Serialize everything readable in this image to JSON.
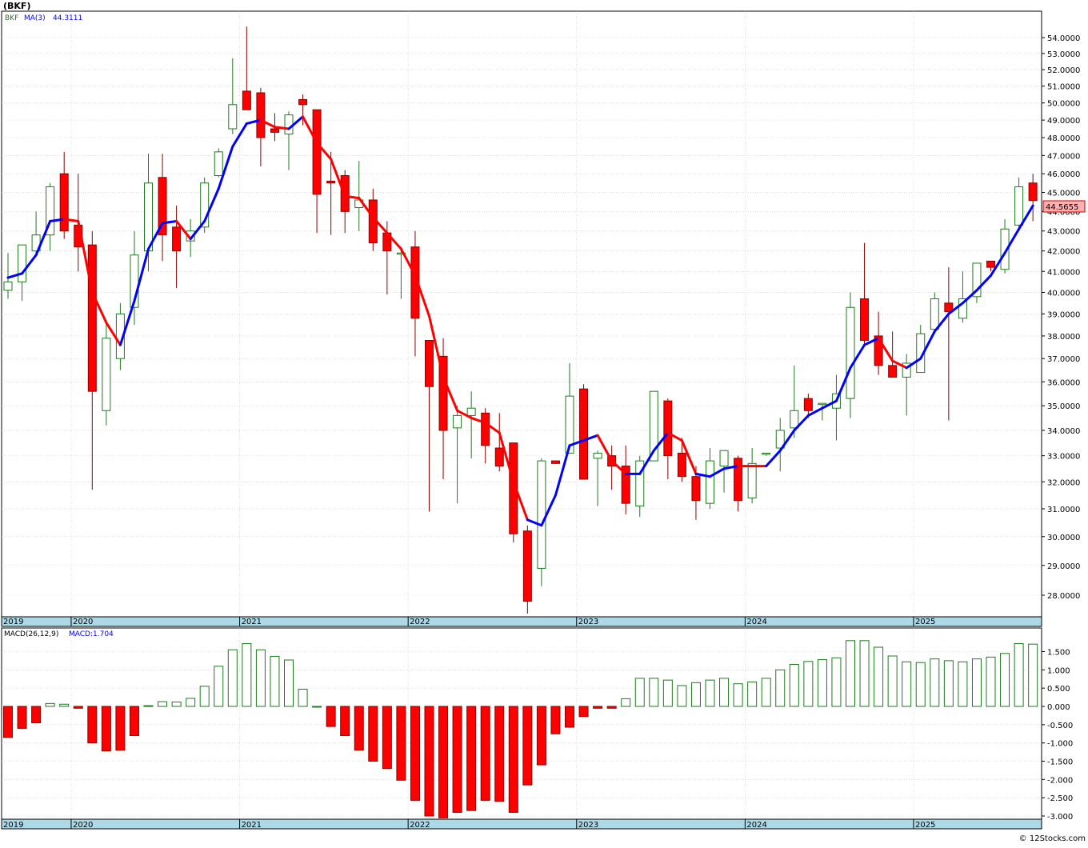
{
  "symbol_label": "(BKF)",
  "footer": "© 12Stocks.com",
  "colors": {
    "up": "#1f7a1f",
    "down": "#ff0000",
    "ma_up": "#0000ff",
    "ma_down": "#ff0000",
    "axis_band": "#add8e6",
    "grid": "#c8c8c8",
    "price_tag_bg": "#ffb0b0"
  },
  "price_panel": {
    "legend": [
      {
        "text": "BKF",
        "color": "#1f7a1f"
      },
      {
        "text": "MA(3)",
        "color": "#0000ff"
      },
      {
        "text": "44.3111",
        "color": "#0000ff"
      }
    ],
    "last_price_tag": "44.5655",
    "y_ticks": [
      "28.0000",
      "29.0000",
      "30.0000",
      "31.0000",
      "32.0000",
      "33.0000",
      "34.0000",
      "35.0000",
      "36.0000",
      "37.0000",
      "38.0000",
      "39.0000",
      "40.0000",
      "41.0000",
      "42.0000",
      "43.0000",
      "44.0000",
      "45.0000",
      "46.0000",
      "47.0000",
      "48.0000",
      "49.0000",
      "50.0000",
      "51.0000",
      "52.0000",
      "53.0000",
      "54.0000"
    ],
    "x_labels": [
      "2019",
      "2020",
      "2021",
      "2022",
      "2023",
      "2024",
      "2025"
    ]
  },
  "macd_panel": {
    "legend": [
      {
        "text": "MACD(26,12,9)",
        "color": "#000000"
      },
      {
        "text": "MACD:1.704",
        "color": "#0000ff"
      }
    ],
    "y_ticks": [
      "-3.000",
      "-2.500",
      "-2.000",
      "-1.500",
      "-1.000",
      "-0.500",
      "0.000",
      "0.500",
      "1.000",
      "1.500"
    ],
    "x_labels": [
      "2019",
      "2020",
      "2021",
      "2022",
      "2023",
      "2024",
      "2025"
    ]
  },
  "chart_data": [
    {
      "type": "candlestick",
      "scale": "log",
      "title": "(BKF)",
      "interval": "monthly",
      "ylim": [
        27.3,
        55.0
      ],
      "year_starts": {
        "2020": 5,
        "2021": 17,
        "2022": 29,
        "2023": 41,
        "2024": 53,
        "2025": 65
      },
      "ohlc": [
        [
          40.1,
          41.9,
          39.7,
          40.5
        ],
        [
          40.5,
          42.3,
          39.6,
          42.3
        ],
        [
          42.0,
          44.0,
          41.7,
          42.8
        ],
        [
          42.8,
          45.5,
          42.0,
          45.3
        ],
        [
          46.0,
          47.2,
          42.6,
          43.0
        ],
        [
          43.3,
          46.0,
          41.0,
          42.2
        ],
        [
          42.3,
          43.0,
          31.7,
          35.6
        ],
        [
          34.8,
          38.7,
          34.2,
          37.9
        ],
        [
          37.0,
          39.5,
          36.5,
          39.0
        ],
        [
          39.3,
          43.0,
          38.5,
          41.8
        ],
        [
          42.0,
          47.1,
          41.0,
          45.5
        ],
        [
          45.8,
          47.1,
          41.5,
          42.8
        ],
        [
          43.2,
          44.3,
          40.2,
          42.0
        ],
        [
          42.5,
          43.6,
          41.7,
          43.0
        ],
        [
          43.2,
          45.8,
          42.9,
          45.5
        ],
        [
          45.9,
          47.4,
          45.8,
          47.2
        ],
        [
          48.5,
          52.7,
          48.2,
          49.9
        ],
        [
          50.7,
          54.7,
          49.7,
          49.6
        ],
        [
          50.6,
          50.9,
          46.4,
          48.0
        ],
        [
          48.5,
          49.4,
          47.8,
          48.3
        ],
        [
          48.2,
          49.5,
          46.2,
          49.3
        ],
        [
          50.2,
          50.5,
          48.7,
          49.9
        ],
        [
          49.6,
          49.6,
          42.9,
          44.9
        ],
        [
          45.6,
          47.2,
          42.8,
          45.5
        ],
        [
          45.9,
          46.2,
          42.9,
          44.0
        ],
        [
          44.2,
          46.7,
          43.0,
          44.6
        ],
        [
          44.6,
          45.2,
          42.0,
          42.4
        ],
        [
          42.9,
          43.5,
          39.9,
          42.0
        ],
        [
          41.9,
          42.2,
          39.7,
          41.9
        ],
        [
          42.2,
          43.0,
          37.1,
          38.8
        ],
        [
          37.8,
          37.8,
          30.9,
          35.8
        ],
        [
          37.1,
          37.9,
          32.1,
          34.0
        ],
        [
          34.1,
          35.0,
          31.2,
          34.6
        ],
        [
          34.6,
          35.6,
          32.9,
          34.9
        ],
        [
          34.7,
          34.9,
          32.7,
          33.4
        ],
        [
          33.3,
          34.7,
          32.4,
          32.6
        ],
        [
          33.5,
          33.5,
          29.8,
          30.1
        ],
        [
          30.2,
          30.4,
          27.4,
          27.8
        ],
        [
          28.9,
          32.9,
          28.3,
          32.8
        ],
        [
          32.8,
          32.8,
          32.7,
          32.7
        ],
        [
          33.1,
          36.8,
          33.1,
          35.4
        ],
        [
          35.7,
          35.9,
          32.1,
          32.1
        ],
        [
          32.9,
          33.2,
          31.1,
          33.1
        ],
        [
          33.0,
          33.4,
          31.7,
          32.6
        ],
        [
          32.6,
          33.4,
          30.8,
          31.2
        ],
        [
          31.1,
          33.0,
          30.7,
          32.8
        ],
        [
          32.8,
          35.6,
          32.8,
          35.6
        ],
        [
          35.2,
          35.3,
          32.1,
          33.0
        ],
        [
          33.1,
          33.7,
          32.0,
          32.2
        ],
        [
          32.2,
          32.6,
          30.6,
          31.3
        ],
        [
          31.2,
          33.3,
          31.0,
          32.8
        ],
        [
          32.6,
          33.2,
          31.6,
          33.2
        ],
        [
          32.9,
          33.0,
          30.9,
          31.3
        ],
        [
          31.4,
          33.3,
          31.2,
          32.7
        ],
        [
          33.1,
          33.1,
          33.0,
          33.1
        ],
        [
          33.3,
          34.5,
          32.4,
          34.0
        ],
        [
          34.1,
          36.7,
          33.7,
          34.8
        ],
        [
          35.3,
          35.5,
          34.5,
          34.8
        ],
        [
          35.1,
          35.1,
          34.4,
          35.1
        ],
        [
          34.9,
          36.3,
          33.6,
          35.5
        ],
        [
          35.3,
          40.0,
          34.5,
          39.3
        ],
        [
          39.7,
          42.4,
          37.6,
          37.8
        ],
        [
          38.0,
          39.1,
          36.3,
          36.7
        ],
        [
          36.7,
          38.2,
          36.2,
          36.2
        ],
        [
          36.2,
          37.2,
          34.6,
          36.8
        ],
        [
          36.4,
          38.5,
          36.4,
          38.1
        ],
        [
          38.3,
          40.0,
          38.1,
          39.7
        ],
        [
          39.5,
          41.2,
          34.4,
          39.1
        ],
        [
          38.8,
          41.0,
          38.6,
          39.7
        ],
        [
          39.8,
          41.4,
          39.5,
          41.4
        ],
        [
          41.5,
          41.5,
          41.0,
          41.2
        ],
        [
          41.1,
          43.6,
          40.9,
          43.1
        ],
        [
          43.3,
          45.8,
          43.1,
          45.3
        ],
        [
          45.5,
          46.0,
          43.5,
          44.57
        ]
      ],
      "ma3": [
        40.7,
        40.9,
        41.8,
        43.5,
        43.6,
        43.5,
        40.0,
        38.6,
        37.6,
        39.6,
        42.1,
        43.4,
        43.5,
        42.6,
        43.5,
        45.2,
        47.5,
        48.8,
        49.0,
        48.6,
        48.5,
        49.2,
        47.7,
        46.8,
        44.8,
        44.7,
        43.7,
        42.9,
        42.1,
        40.8,
        38.9,
        36.2,
        34.8,
        34.5,
        34.3,
        33.9,
        32.0,
        30.6,
        30.4,
        31.5,
        33.4,
        33.6,
        33.8,
        32.8,
        32.3,
        32.3,
        33.2,
        33.9,
        33.6,
        32.3,
        32.2,
        32.5,
        32.6,
        32.6,
        32.6,
        33.2,
        34.0,
        34.6,
        34.9,
        35.2,
        36.6,
        37.6,
        37.9,
        36.9,
        36.6,
        37.0,
        38.2,
        39.0,
        39.5,
        40.1,
        40.8,
        41.9,
        43.1,
        44.3
      ],
      "ma_trend": [
        1,
        1,
        1,
        1,
        1,
        0,
        0,
        0,
        0,
        1,
        1,
        1,
        1,
        0,
        1,
        1,
        1,
        1,
        1,
        0,
        0,
        1,
        0,
        0,
        0,
        0,
        0,
        0,
        0,
        0,
        0,
        0,
        0,
        0,
        0,
        0,
        0,
        0,
        1,
        1,
        1,
        1,
        1,
        0,
        0,
        1,
        1,
        1,
        0,
        0,
        1,
        1,
        1,
        0,
        0,
        1,
        1,
        1,
        1,
        1,
        1,
        1,
        1,
        0,
        0,
        1,
        1,
        1,
        1,
        1,
        1,
        1,
        1,
        1
      ]
    },
    {
      "type": "bar",
      "title": "MACD(26,12,9)",
      "ylim": [
        -3.1,
        1.95
      ],
      "values": [
        -0.85,
        -0.6,
        -0.45,
        0.08,
        0.06,
        -0.05,
        -1.0,
        -1.22,
        -1.2,
        -0.8,
        0.02,
        0.13,
        0.12,
        0.22,
        0.55,
        1.1,
        1.55,
        1.72,
        1.55,
        1.37,
        1.27,
        0.47,
        0.0,
        -0.55,
        -0.8,
        -1.2,
        -1.5,
        -1.7,
        -2.02,
        -2.57,
        -3.0,
        -3.05,
        -2.9,
        -2.85,
        -2.57,
        -2.6,
        -2.9,
        -2.15,
        -1.6,
        -0.75,
        -0.57,
        -0.28,
        -0.05,
        -0.05,
        0.21,
        0.77,
        0.77,
        0.72,
        0.57,
        0.65,
        0.72,
        0.77,
        0.62,
        0.67,
        0.77,
        1.0,
        1.15,
        1.23,
        1.28,
        1.33,
        1.8,
        1.8,
        1.62,
        1.38,
        1.22,
        1.2,
        1.3,
        1.25,
        1.22,
        1.3,
        1.35,
        1.45,
        1.72,
        1.704
      ],
      "bar_trend": [
        0,
        0,
        1,
        1,
        1,
        0,
        0,
        0,
        1,
        1,
        1,
        1,
        1,
        1,
        1,
        1,
        1,
        1,
        1,
        1,
        1,
        1,
        1,
        0,
        0,
        0,
        0,
        0,
        0,
        0,
        0,
        0,
        0,
        0,
        0,
        0,
        0,
        0,
        0,
        0,
        0,
        0,
        0,
        0,
        1,
        1,
        1,
        1,
        1,
        1,
        1,
        1,
        1,
        1,
        1,
        1,
        1,
        1,
        1,
        1,
        1,
        1,
        1,
        1,
        1,
        1,
        1,
        1,
        1,
        1,
        1,
        1,
        1,
        1
      ]
    }
  ]
}
